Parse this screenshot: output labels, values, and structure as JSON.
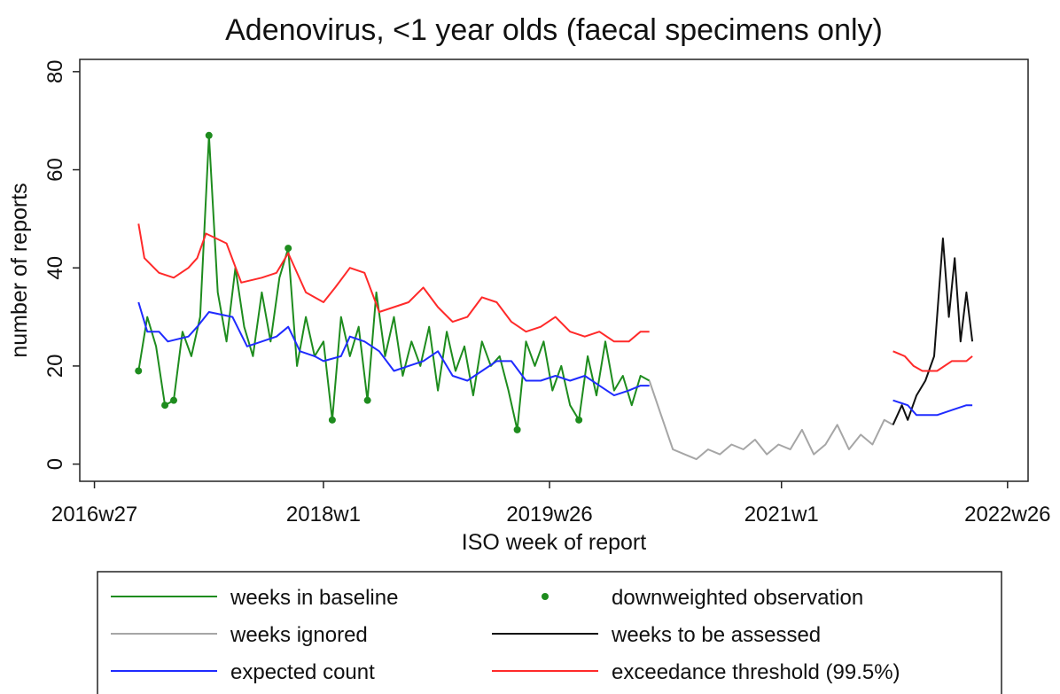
{
  "chart_data": {
    "type": "line",
    "title": "Adenovirus, <1 year olds (faecal specimens only)",
    "x_label": "ISO week of report",
    "y_label": "number of reports",
    "xlim": [
      2933,
      3256
    ],
    "xticks": [
      {
        "value": 2938,
        "label": "2016w27"
      },
      {
        "value": 3016,
        "label": "2018w1"
      },
      {
        "value": 3093,
        "label": "2019w26"
      },
      {
        "value": 3172,
        "label": "2021w1"
      },
      {
        "value": 3249,
        "label": "2022w26"
      }
    ],
    "ylim": [
      -3.5,
      82.5
    ],
    "yticks": [
      0,
      20,
      40,
      60,
      80
    ],
    "grid": false,
    "legend": "bottom",
    "series": [
      {
        "name": "weeks in baseline",
        "color": "#1e8c1e",
        "type": "line",
        "x": [
          2953,
          2956,
          2959,
          2962,
          2965,
          2968,
          2971,
          2974,
          2977,
          2980,
          2983,
          2986,
          2989,
          2992,
          2995,
          2998,
          3001,
          3004,
          3007,
          3010,
          3013,
          3016,
          3019,
          3022,
          3025,
          3028,
          3031,
          3034,
          3037,
          3040,
          3043,
          3046,
          3049,
          3052,
          3055,
          3058,
          3061,
          3064,
          3067,
          3070,
          3073,
          3076,
          3079,
          3082,
          3085,
          3088,
          3091,
          3094,
          3097,
          3100,
          3103,
          3106,
          3109,
          3112,
          3115,
          3118,
          3121,
          3124,
          3127
        ],
        "values": [
          19,
          30,
          24,
          12,
          13,
          27,
          22,
          30,
          67,
          35,
          25,
          40,
          28,
          22,
          35,
          25,
          38,
          44,
          20,
          30,
          22,
          25,
          9,
          30,
          22,
          28,
          13,
          35,
          22,
          30,
          18,
          25,
          20,
          28,
          15,
          27,
          19,
          24,
          14,
          25,
          20,
          22,
          15,
          7,
          25,
          20,
          25,
          15,
          20,
          12,
          9,
          22,
          14,
          25,
          15,
          18,
          12,
          18,
          17
        ]
      },
      {
        "name": "downweighted observation",
        "color": "#1e8c1e",
        "type": "scatter",
        "x": [
          2953,
          2962,
          2965,
          2977,
          3004,
          3019,
          3031,
          3082,
          3103
        ],
        "values": [
          19,
          12,
          13,
          67,
          44,
          9,
          13,
          7,
          9
        ]
      },
      {
        "name": "weeks ignored",
        "color": "#a6a6a6",
        "type": "line",
        "x": [
          3127,
          3131,
          3135,
          3139,
          3143,
          3147,
          3151,
          3155,
          3159,
          3163,
          3167,
          3171,
          3175,
          3179,
          3183,
          3187,
          3191,
          3195,
          3199,
          3203,
          3207,
          3210
        ],
        "values": [
          17,
          10,
          3,
          2,
          1,
          3,
          2,
          4,
          3,
          5,
          2,
          4,
          3,
          7,
          2,
          4,
          8,
          3,
          6,
          4,
          9,
          8
        ]
      },
      {
        "name": "weeks to be assessed",
        "color": "#111111",
        "type": "line",
        "x": [
          3210,
          3213,
          3215,
          3218,
          3221,
          3224,
          3227,
          3229,
          3231,
          3233,
          3235,
          3237
        ],
        "values": [
          8,
          12,
          9,
          14,
          17,
          22,
          46,
          30,
          42,
          25,
          35,
          25
        ]
      },
      {
        "name": "expected count",
        "color": "#1f2bff",
        "type": "line",
        "x": [
          2953,
          2956,
          2960,
          2963,
          2970,
          2973,
          2977,
          2985,
          2990,
          2995,
          3000,
          3004,
          3008,
          3013,
          3016,
          3022,
          3025,
          3030,
          3035,
          3040,
          3045,
          3050,
          3055,
          3060,
          3065,
          3070,
          3075,
          3080,
          3085,
          3090,
          3095,
          3100,
          3105,
          3110,
          3115,
          3120,
          3124,
          3127,
          3170,
          3210,
          3215,
          3218,
          3225,
          3230,
          3235,
          3237
        ],
        "values": [
          33,
          27,
          27,
          25,
          26,
          28,
          31,
          30,
          24,
          25,
          26,
          28,
          23,
          22,
          21,
          22,
          26,
          25,
          23,
          19,
          20,
          21,
          23,
          18,
          17,
          19,
          21,
          21,
          17,
          17,
          18,
          17,
          18,
          16,
          14,
          15,
          16,
          16,
          null,
          13,
          12,
          10,
          10,
          11,
          12,
          12
        ]
      },
      {
        "name": "exceedance threshold (99.5%)",
        "color": "#ff2a2a",
        "type": "line",
        "x": [
          2953,
          2955,
          2960,
          2965,
          2970,
          2973,
          2976,
          2983,
          2988,
          2995,
          3000,
          3004,
          3010,
          3016,
          3020,
          3025,
          3030,
          3035,
          3045,
          3050,
          3055,
          3060,
          3065,
          3070,
          3075,
          3080,
          3085,
          3090,
          3095,
          3100,
          3105,
          3110,
          3115,
          3120,
          3124,
          3127,
          3170,
          3210,
          3214,
          3217,
          3220,
          3225,
          3230,
          3235,
          3237
        ],
        "values": [
          49,
          42,
          39,
          38,
          40,
          42,
          47,
          45,
          37,
          38,
          39,
          43,
          35,
          33,
          36,
          40,
          39,
          31,
          33,
          36,
          32,
          29,
          30,
          34,
          33,
          29,
          27,
          28,
          30,
          27,
          26,
          27,
          25,
          25,
          27,
          27,
          null,
          23,
          22,
          20,
          19,
          19,
          21,
          21,
          22
        ]
      }
    ]
  }
}
